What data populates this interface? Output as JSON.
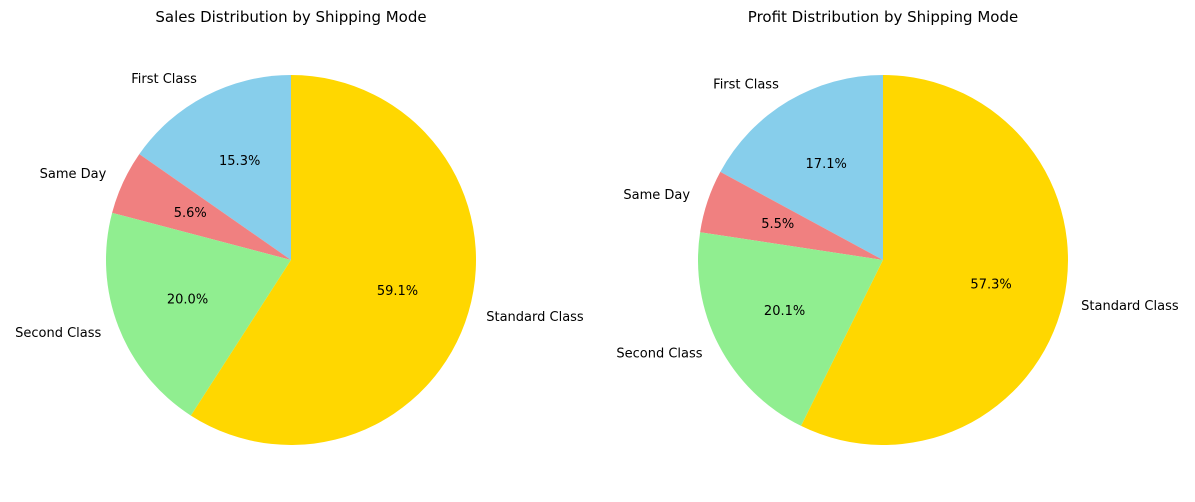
{
  "chart_data": [
    {
      "type": "pie",
      "title": "Sales Distribution by Shipping Mode",
      "categories": [
        "First Class",
        "Same Day",
        "Second Class",
        "Standard Class"
      ],
      "values": [
        15.3,
        5.6,
        20.0,
        59.1
      ],
      "value_labels": [
        "15.3%",
        "5.6%",
        "20.0%",
        "59.1%"
      ],
      "colors": [
        "#87CEEB",
        "#F08080",
        "#90EE90",
        "#FFD700"
      ],
      "start_angle_deg": 90,
      "direction": "counterclockwise"
    },
    {
      "type": "pie",
      "title": "Profit Distribution by Shipping Mode",
      "categories": [
        "First Class",
        "Same Day",
        "Second Class",
        "Standard Class"
      ],
      "values": [
        17.1,
        5.5,
        20.1,
        57.3
      ],
      "value_labels": [
        "17.1%",
        "5.5%",
        "20.1%",
        "57.3%"
      ],
      "colors": [
        "#87CEEB",
        "#F08080",
        "#90EE90",
        "#FFD700"
      ],
      "start_angle_deg": 90,
      "direction": "counterclockwise"
    }
  ]
}
